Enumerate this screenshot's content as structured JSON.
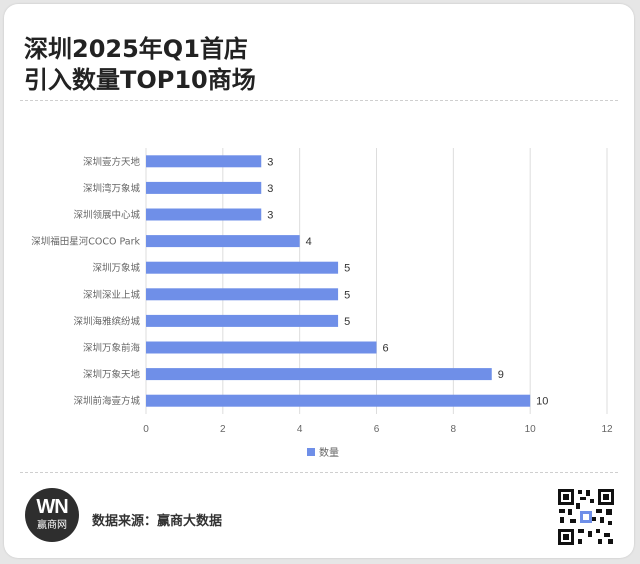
{
  "title": {
    "line1": "深圳2025年Q1首店",
    "line2": "引入数量TOP10商场"
  },
  "chart_data": {
    "type": "bar",
    "orientation": "horizontal",
    "categories": [
      "深圳壹方天地",
      "深圳湾万象城",
      "深圳领展中心城",
      "深圳福田星河COCO Park",
      "深圳万象城",
      "深圳深业上城",
      "深圳海雅缤纷城",
      "深圳万象前海",
      "深圳万象天地",
      "深圳前海壹方城"
    ],
    "series": [
      {
        "name": "数量",
        "values": [
          3,
          3,
          3,
          4,
          5,
          5,
          5,
          6,
          9,
          10
        ]
      }
    ],
    "xlim": [
      0,
      12
    ],
    "xticks": [
      0,
      2,
      4,
      6,
      8,
      10,
      12
    ],
    "grid": true,
    "legend": "bottom",
    "data_labels": true,
    "colors": {
      "bar": "#6f8fe8",
      "grid": "#dddddd",
      "label": "#333333",
      "tick": "#666666"
    }
  },
  "footer": {
    "logo_text": "WN",
    "logo_caption": "赢商网",
    "source": "数据来源：赢商大数据",
    "qr_icon": "qr-code-icon"
  }
}
